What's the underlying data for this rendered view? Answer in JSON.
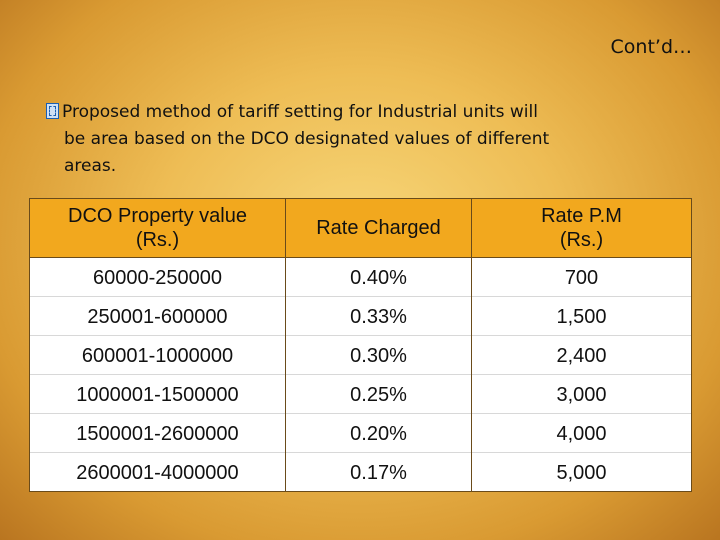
{
  "slide": {
    "title": "Cont’d…",
    "bullet_lines": [
      "Proposed method of tariff setting  for Industrial  units   will",
      "be  area based on the DCO designated values of different",
      "areas."
    ],
    "table": {
      "headers": [
        [
          "DCO Property value",
          "(Rs.)"
        ],
        [
          "Rate Charged"
        ],
        [
          "Rate P.M",
          "(Rs.)"
        ]
      ],
      "rows": [
        [
          "60000-250000",
          "0.40%",
          "700"
        ],
        [
          "250001-600000",
          "0.33%",
          "1,500"
        ],
        [
          "600001-1000000",
          "0.30%",
          "2,400"
        ],
        [
          "1000001-1500000",
          "0.25%",
          "3,000"
        ],
        [
          "1500001-2600000",
          "0.20%",
          "4,000"
        ],
        [
          "2600001-4000000",
          "0.17%",
          "5,000"
        ]
      ]
    },
    "colors": {
      "header_fill": "#f2a81e",
      "background_center": "#f7d77a",
      "background_edge": "#b97520"
    }
  }
}
